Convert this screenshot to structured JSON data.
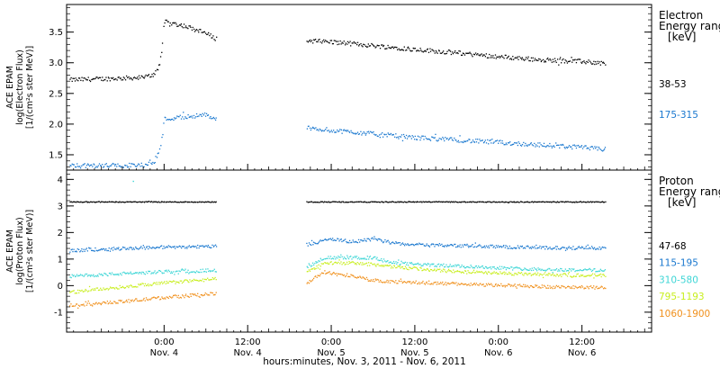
{
  "chart_data": {
    "type": "scatter",
    "x_axis": {
      "title": "hours:minutes, Nov. 3, 2011 - Nov. 6, 2011",
      "range_hours": [
        -14,
        70
      ],
      "ticks": [
        {
          "hour": 0,
          "time": "0:00",
          "day": "Nov. 4"
        },
        {
          "hour": 12,
          "time": "12:00",
          "day": "Nov. 4"
        },
        {
          "hour": 24,
          "time": "0:00",
          "day": "Nov. 5"
        },
        {
          "hour": 36,
          "time": "12:00",
          "day": "Nov. 5"
        },
        {
          "hour": 48,
          "time": "0:00",
          "day": "Nov. 6"
        },
        {
          "hour": 60,
          "time": "12:00",
          "day": "Nov. 6"
        }
      ]
    },
    "panels": [
      {
        "id": "electron",
        "ylabel": [
          "ACE EPAM",
          "log(Electron Flux)",
          "[1/(cm²s ster MeV)]"
        ],
        "ylim": [
          1.25,
          3.95
        ],
        "yticks": [
          "1.5",
          "2.0",
          "2.5",
          "3.0",
          "3.5"
        ],
        "ytick_values": [
          1.5,
          2.0,
          2.5,
          3.0,
          3.5
        ],
        "legend_title": [
          "Electron",
          "Energy ranges",
          "[keV]"
        ],
        "series": [
          {
            "name": "38-53",
            "color": "#000000",
            "points": [
              [
                -13.5,
                2.72
              ],
              [
                -3,
                2.76
              ],
              [
                -1.5,
                2.8
              ],
              [
                -0.6,
                3.0
              ],
              [
                -0.2,
                3.3
              ],
              [
                0,
                3.67
              ],
              [
                3,
                3.6
              ],
              [
                6,
                3.48
              ],
              [
                7.5,
                3.39
              ],
              [
                20.5,
                3.36
              ],
              [
                24,
                3.34
              ],
              [
                30,
                3.28
              ],
              [
                36,
                3.22
              ],
              [
                42,
                3.16
              ],
              [
                48,
                3.1
              ],
              [
                54,
                3.05
              ],
              [
                60,
                3.02
              ],
              [
                63.5,
                2.99
              ]
            ]
          },
          {
            "name": "175-315",
            "color": "#1a78cf",
            "points": [
              [
                -13.5,
                1.32
              ],
              [
                -3,
                1.33
              ],
              [
                -1.5,
                1.38
              ],
              [
                -0.6,
                1.6
              ],
              [
                -0.2,
                1.85
              ],
              [
                0,
                2.08
              ],
              [
                3,
                2.12
              ],
              [
                6,
                2.15
              ],
              [
                7.5,
                2.08
              ],
              [
                20.5,
                1.94
              ],
              [
                24,
                1.9
              ],
              [
                30,
                1.84
              ],
              [
                36,
                1.78
              ],
              [
                42,
                1.74
              ],
              [
                48,
                1.7
              ],
              [
                54,
                1.66
              ],
              [
                60,
                1.62
              ],
              [
                63.5,
                1.58
              ]
            ]
          }
        ]
      },
      {
        "id": "proton",
        "ylabel": [
          "ACE EPAM",
          "log(Proton Flux)",
          "[1/(cm²s ster MeV)]"
        ],
        "ylim": [
          -1.75,
          4.35
        ],
        "yticks": [
          "-1",
          "0",
          "1",
          "2",
          "3",
          "4"
        ],
        "ytick_values": [
          -1,
          0,
          1,
          2,
          3,
          4
        ],
        "legend_title": [
          "Proton",
          "Energy ranges",
          "[keV]"
        ],
        "series": [
          {
            "name": "47-68",
            "color": "#000000",
            "points": [
              [
                -13.5,
                3.15
              ],
              [
                7.5,
                3.15
              ],
              [
                20.5,
                3.15
              ],
              [
                63.5,
                3.15
              ]
            ]
          },
          {
            "name": "115-195",
            "color": "#1a78cf",
            "points": [
              [
                -13.5,
                1.32
              ],
              [
                -6,
                1.4
              ],
              [
                0,
                1.45
              ],
              [
                7.5,
                1.48
              ],
              [
                20.5,
                1.55
              ],
              [
                24,
                1.75
              ],
              [
                27,
                1.65
              ],
              [
                30,
                1.75
              ],
              [
                33,
                1.6
              ],
              [
                38,
                1.52
              ],
              [
                44,
                1.5
              ],
              [
                50,
                1.45
              ],
              [
                56,
                1.42
              ],
              [
                63.5,
                1.42
              ]
            ]
          },
          {
            "name": "310-580",
            "color": "#3ed6d6",
            "points": [
              [
                -13.5,
                0.35
              ],
              [
                -6,
                0.45
              ],
              [
                0,
                0.52
              ],
              [
                7.5,
                0.58
              ],
              [
                20.5,
                0.7
              ],
              [
                23,
                1.05
              ],
              [
                27,
                1.05
              ],
              [
                30,
                1.05
              ],
              [
                33,
                0.85
              ],
              [
                38,
                0.78
              ],
              [
                44,
                0.72
              ],
              [
                50,
                0.65
              ],
              [
                56,
                0.6
              ],
              [
                63.5,
                0.58
              ]
            ]
          },
          {
            "name": "795-1193",
            "color": "#c8ee1e",
            "points": [
              [
                -13.5,
                -0.25
              ],
              [
                -6,
                -0.05
              ],
              [
                0,
                0.1
              ],
              [
                7.5,
                0.25
              ],
              [
                20.5,
                0.5
              ],
              [
                23,
                0.85
              ],
              [
                27,
                0.85
              ],
              [
                30,
                0.8
              ],
              [
                33,
                0.7
              ],
              [
                38,
                0.6
              ],
              [
                44,
                0.5
              ],
              [
                50,
                0.45
              ],
              [
                56,
                0.4
              ],
              [
                63.5,
                0.38
              ]
            ]
          },
          {
            "name": "1060-1900",
            "color": "#f0901c",
            "points": [
              [
                -13.5,
                -0.75
              ],
              [
                -6,
                -0.6
              ],
              [
                0,
                -0.45
              ],
              [
                7.5,
                -0.3
              ],
              [
                20.5,
                0.1
              ],
              [
                23,
                0.5
              ],
              [
                27,
                0.35
              ],
              [
                30,
                0.2
              ],
              [
                33,
                0.15
              ],
              [
                38,
                0.1
              ],
              [
                44,
                0.05
              ],
              [
                50,
                0.0
              ],
              [
                56,
                -0.05
              ],
              [
                63.5,
                -0.08
              ]
            ]
          }
        ]
      }
    ]
  }
}
